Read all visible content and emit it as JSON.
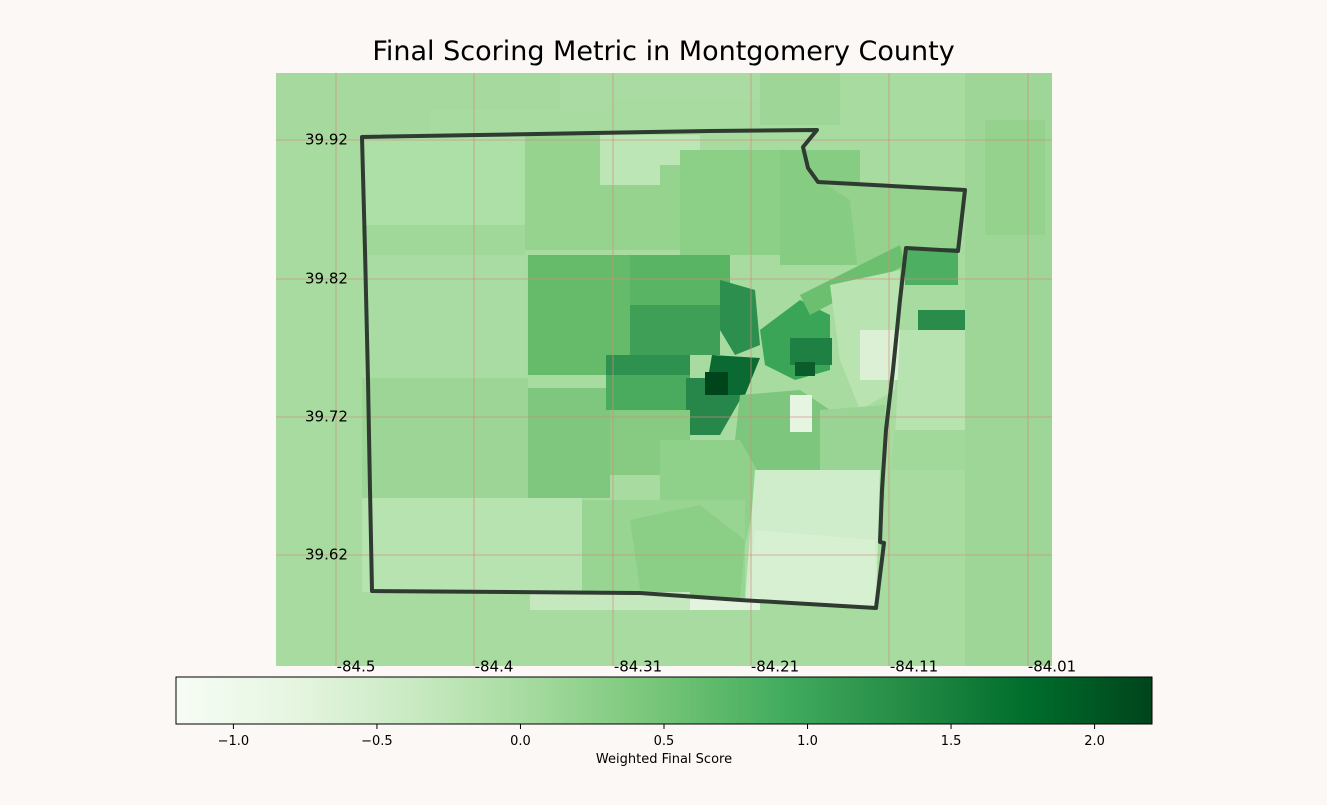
{
  "title": "Final Scoring Metric in Montgomery County",
  "map": {
    "lat_ticks": [
      "39.92",
      "39.82",
      "39.72",
      "39.62"
    ],
    "lon_ticks": [
      "-84.5",
      "-84.4",
      "-84.31",
      "-84.21",
      "-84.11",
      "-84.01"
    ],
    "gridline_color": "#d48a7a",
    "boundary_color": "#2f3b30",
    "colormap": "Greens"
  },
  "colorbar": {
    "label": "Weighted Final Score",
    "min": -1.2,
    "max": 2.2,
    "ticks": [
      {
        "value": -1.0,
        "label": "−1.0"
      },
      {
        "value": -0.5,
        "label": "−0.5"
      },
      {
        "value": 0.0,
        "label": "0.0"
      },
      {
        "value": 0.5,
        "label": "0.5"
      },
      {
        "value": 1.0,
        "label": "1.0"
      },
      {
        "value": 1.5,
        "label": "1.5"
      },
      {
        "value": 2.0,
        "label": "2.0"
      }
    ]
  }
}
